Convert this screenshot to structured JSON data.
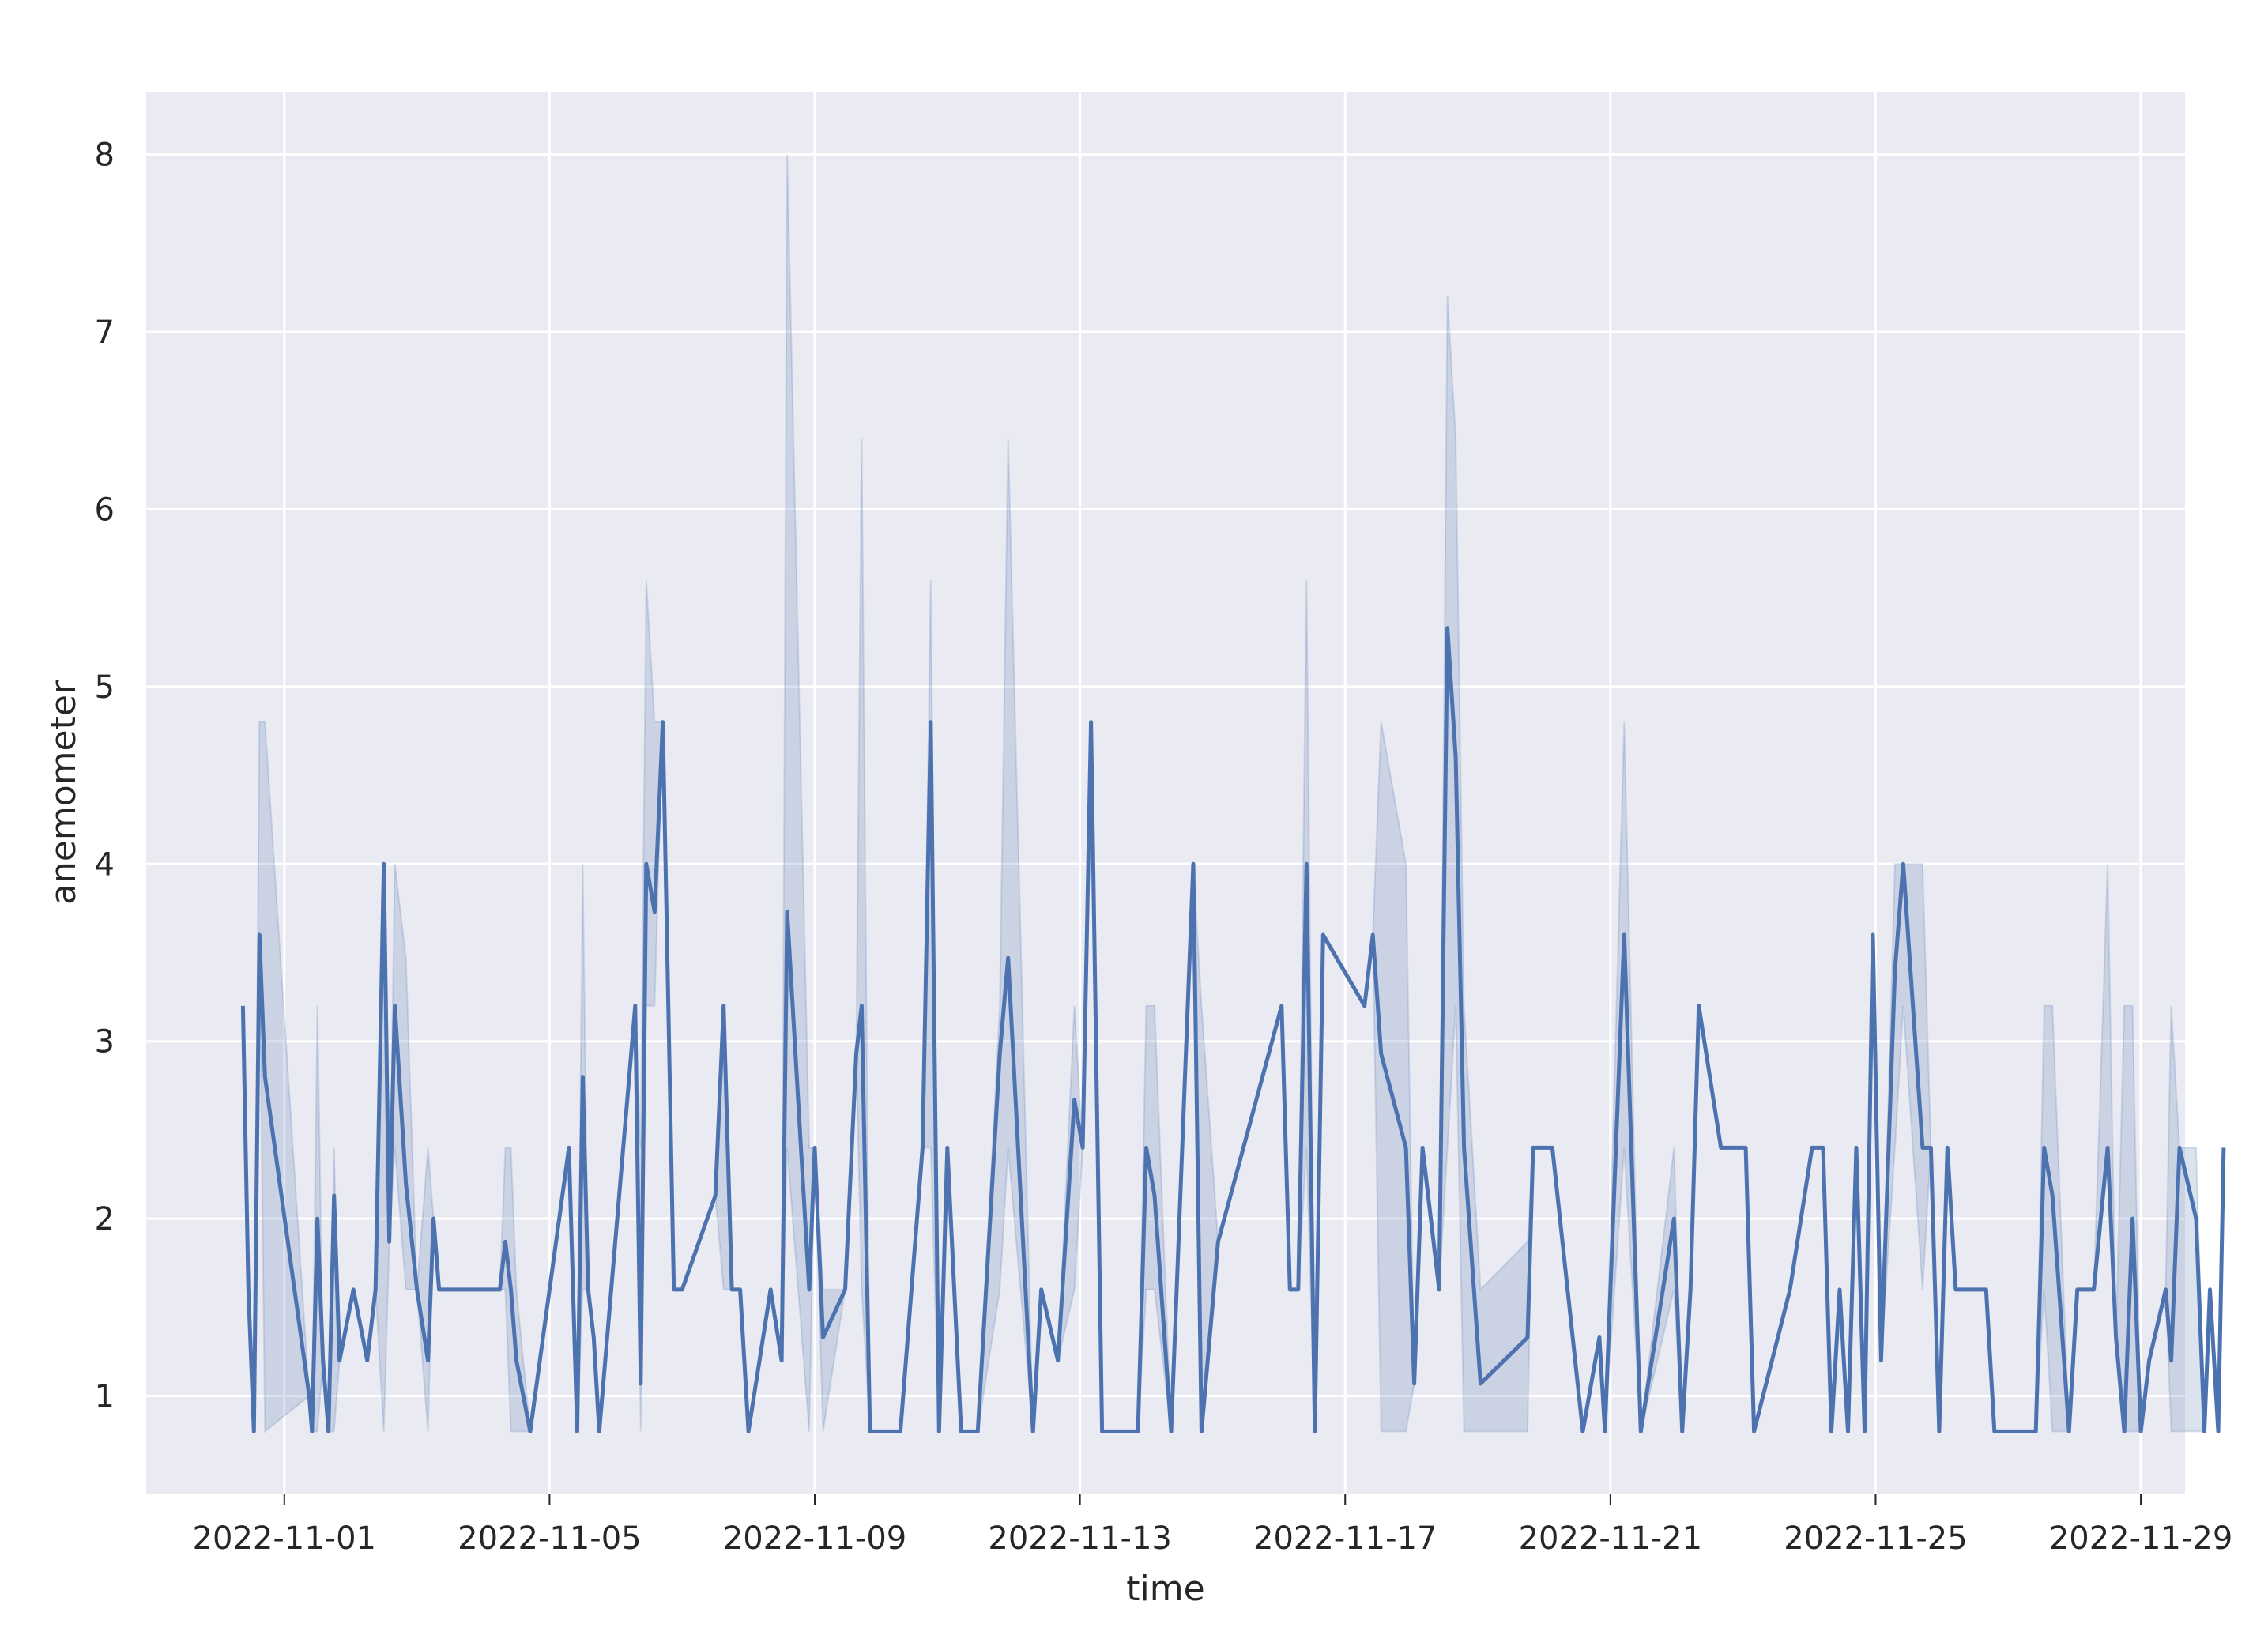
{
  "chart_data": {
    "type": "line",
    "title": "",
    "xlabel": "time",
    "ylabel": "anemometer",
    "x_ticks": [
      "2022-11-01",
      "2022-11-05",
      "2022-11-09",
      "2022-11-13",
      "2022-11-17",
      "2022-11-21",
      "2022-11-25",
      "2022-11-29"
    ],
    "y_ticks": [
      "1",
      "2",
      "3",
      "4",
      "5",
      "6",
      "7",
      "8"
    ],
    "xlim": [
      "2022-10-29T22:00",
      "2022-11-29T16:00"
    ],
    "ylim": [
      0.45,
      8.35
    ],
    "grid": true,
    "legend": "none",
    "colors": {
      "plot_bg": "#eaeaf2",
      "grid": "#ffffff",
      "line": "#4c72b0",
      "band": "#4c72b0"
    },
    "series": [
      {
        "points": [
          [
            "2022-10-31T09:00",
            3.2
          ],
          [
            "2022-10-31T11:00",
            1.6
          ],
          [
            "2022-10-31T13:00",
            0.8
          ],
          [
            "2022-10-31T15:00",
            3.6
          ],
          [
            "2022-10-31T17:00",
            2.8
          ],
          [
            "2022-11-01T09:00",
            1.0
          ],
          [
            "2022-11-01T10:00",
            0.8
          ],
          [
            "2022-11-01T12:00",
            2.0
          ],
          [
            "2022-11-01T14:00",
            1.2
          ],
          [
            "2022-11-01T16:00",
            0.8
          ],
          [
            "2022-11-01T18:00",
            2.13
          ],
          [
            "2022-11-01T20:00",
            1.2
          ],
          [
            "2022-11-02T01:00",
            1.6
          ],
          [
            "2022-11-02T06:00",
            1.2
          ],
          [
            "2022-11-02T09:00",
            1.6
          ],
          [
            "2022-11-02T12:00",
            4.0
          ],
          [
            "2022-11-02T14:00",
            1.87
          ],
          [
            "2022-11-02T16:00",
            3.2
          ],
          [
            "2022-11-02T20:00",
            2.2
          ],
          [
            "2022-11-03T00:00",
            1.6
          ],
          [
            "2022-11-03T04:00",
            1.2
          ],
          [
            "2022-11-03T06:00",
            2.0
          ],
          [
            "2022-11-03T08:00",
            1.6
          ],
          [
            "2022-11-04T06:00",
            1.6
          ],
          [
            "2022-11-04T08:00",
            1.87
          ],
          [
            "2022-11-04T10:00",
            1.6
          ],
          [
            "2022-11-04T12:00",
            1.2
          ],
          [
            "2022-11-04T17:00",
            0.8
          ],
          [
            "2022-11-05T07:00",
            2.4
          ],
          [
            "2022-11-05T10:00",
            0.8
          ],
          [
            "2022-11-05T12:00",
            2.8
          ],
          [
            "2022-11-05T14:00",
            1.6
          ],
          [
            "2022-11-05T16:00",
            1.33
          ],
          [
            "2022-11-05T18:00",
            0.8
          ],
          [
            "2022-11-06T07:00",
            3.2
          ],
          [
            "2022-11-06T09:00",
            1.07
          ],
          [
            "2022-11-06T11:00",
            4.0
          ],
          [
            "2022-11-06T14:00",
            3.73
          ],
          [
            "2022-11-06T17:00",
            4.8
          ],
          [
            "2022-11-06T21:00",
            1.6
          ],
          [
            "2022-11-07T00:00",
            1.6
          ],
          [
            "2022-11-07T12:00",
            2.13
          ],
          [
            "2022-11-07T15:00",
            3.2
          ],
          [
            "2022-11-07T18:00",
            1.6
          ],
          [
            "2022-11-07T21:00",
            1.6
          ],
          [
            "2022-11-08T00:00",
            0.8
          ],
          [
            "2022-11-08T08:00",
            1.6
          ],
          [
            "2022-11-08T12:00",
            1.2
          ],
          [
            "2022-11-08T14:00",
            3.73
          ],
          [
            "2022-11-08T22:00",
            1.6
          ],
          [
            "2022-11-09T00:00",
            2.4
          ],
          [
            "2022-11-09T03:00",
            1.33
          ],
          [
            "2022-11-09T11:00",
            1.6
          ],
          [
            "2022-11-09T15:00",
            2.93
          ],
          [
            "2022-11-09T17:00",
            3.2
          ],
          [
            "2022-11-09T20:00",
            0.8
          ],
          [
            "2022-11-10T07:00",
            0.8
          ],
          [
            "2022-11-10T15:00",
            2.4
          ],
          [
            "2022-11-10T18:00",
            4.8
          ],
          [
            "2022-11-10T21:00",
            0.8
          ],
          [
            "2022-11-11T00:00",
            2.4
          ],
          [
            "2022-11-11T05:00",
            0.8
          ],
          [
            "2022-11-11T11:00",
            0.8
          ],
          [
            "2022-11-11T19:00",
            2.93
          ],
          [
            "2022-11-11T22:00",
            3.47
          ],
          [
            "2022-11-12T07:00",
            0.8
          ],
          [
            "2022-11-12T10:00",
            1.6
          ],
          [
            "2022-11-12T16:00",
            1.2
          ],
          [
            "2022-11-12T22:00",
            2.67
          ],
          [
            "2022-11-13T01:00",
            2.4
          ],
          [
            "2022-11-13T04:00",
            4.8
          ],
          [
            "2022-11-13T08:00",
            0.8
          ],
          [
            "2022-11-13T21:00",
            0.8
          ],
          [
            "2022-11-14T00:00",
            2.4
          ],
          [
            "2022-11-14T03:00",
            2.13
          ],
          [
            "2022-11-14T09:00",
            0.8
          ],
          [
            "2022-11-14T17:00",
            4.0
          ],
          [
            "2022-11-14T20:00",
            0.8
          ],
          [
            "2022-11-15T02:00",
            1.87
          ],
          [
            "2022-11-16T01:00",
            3.2
          ],
          [
            "2022-11-16T04:00",
            1.6
          ],
          [
            "2022-11-16T07:00",
            1.6
          ],
          [
            "2022-11-16T10:00",
            4.0
          ],
          [
            "2022-11-16T13:00",
            0.8
          ],
          [
            "2022-11-16T16:00",
            3.6
          ],
          [
            "2022-11-17T07:00",
            3.2
          ],
          [
            "2022-11-17T10:00",
            3.6
          ],
          [
            "2022-11-17T13:00",
            2.93
          ],
          [
            "2022-11-17T22:00",
            2.4
          ],
          [
            "2022-11-18T01:00",
            1.07
          ],
          [
            "2022-11-18T04:00",
            2.4
          ],
          [
            "2022-11-18T10:00",
            1.6
          ],
          [
            "2022-11-18T13:00",
            5.33
          ],
          [
            "2022-11-18T16:00",
            4.6
          ],
          [
            "2022-11-18T19:00",
            2.4
          ],
          [
            "2022-11-19T01:00",
            1.07
          ],
          [
            "2022-11-19T18:00",
            1.33
          ],
          [
            "2022-11-19T20:00",
            2.4
          ],
          [
            "2022-11-20T03:00",
            2.4
          ],
          [
            "2022-11-20T14:00",
            0.8
          ],
          [
            "2022-11-20T20:00",
            1.33
          ],
          [
            "2022-11-20T22:00",
            0.8
          ],
          [
            "2022-11-21T05:00",
            3.6
          ],
          [
            "2022-11-21T11:00",
            0.8
          ],
          [
            "2022-11-21T23:00",
            2.0
          ],
          [
            "2022-11-22T02:00",
            0.8
          ],
          [
            "2022-11-22T05:00",
            1.6
          ],
          [
            "2022-11-22T08:00",
            3.2
          ],
          [
            "2022-11-22T16:00",
            2.4
          ],
          [
            "2022-11-23T01:00",
            2.4
          ],
          [
            "2022-11-23T04:00",
            0.8
          ],
          [
            "2022-11-23T17:00",
            1.6
          ],
          [
            "2022-11-24T01:00",
            2.4
          ],
          [
            "2022-11-24T05:00",
            2.4
          ],
          [
            "2022-11-24T08:00",
            0.8
          ],
          [
            "2022-11-24T11:00",
            1.6
          ],
          [
            "2022-11-24T14:00",
            0.8
          ],
          [
            "2022-11-24T17:00",
            2.4
          ],
          [
            "2022-11-24T20:00",
            0.8
          ],
          [
            "2022-11-24T23:00",
            3.6
          ],
          [
            "2022-11-25T02:00",
            1.2
          ],
          [
            "2022-11-25T07:00",
            3.4
          ],
          [
            "2022-11-25T10:00",
            4.0
          ],
          [
            "2022-11-25T17:00",
            2.4
          ],
          [
            "2022-11-25T20:00",
            2.4
          ],
          [
            "2022-11-25T23:00",
            0.8
          ],
          [
            "2022-11-26T02:00",
            2.4
          ],
          [
            "2022-11-26T05:00",
            1.6
          ],
          [
            "2022-11-26T16:00",
            1.6
          ],
          [
            "2022-11-26T19:00",
            0.8
          ],
          [
            "2022-11-27T10:00",
            0.8
          ],
          [
            "2022-11-27T13:00",
            2.4
          ],
          [
            "2022-11-27T16:00",
            2.13
          ],
          [
            "2022-11-27T22:00",
            0.8
          ],
          [
            "2022-11-28T01:00",
            1.6
          ],
          [
            "2022-11-28T07:00",
            1.6
          ],
          [
            "2022-11-28T12:00",
            2.4
          ],
          [
            "2022-11-28T15:00",
            1.33
          ],
          [
            "2022-11-28T18:00",
            0.8
          ],
          [
            "2022-11-28T21:00",
            2.0
          ],
          [
            "2022-11-29T00:00",
            0.8
          ],
          [
            "2022-11-29T03:00",
            1.2
          ],
          [
            "2022-11-29T09:00",
            1.6
          ],
          [
            "2022-11-29T11:00",
            1.2
          ],
          [
            "2022-11-29T14:00",
            2.4
          ],
          [
            "2022-11-29T20:00",
            2.0
          ],
          [
            "2022-11-29T23:00",
            0.8
          ],
          [
            "2022-11-30T01:00",
            1.6
          ],
          [
            "2022-11-30T04:00",
            0.8
          ],
          [
            "2022-11-30T06:00",
            2.4
          ]
        ]
      }
    ],
    "ci_band": [
      [
        "2022-10-31T15:00",
        3.6,
        4.8
      ],
      [
        "2022-10-31T17:00",
        0.8,
        4.8
      ],
      [
        "2022-11-01T12:00",
        0.8,
        3.2
      ],
      [
        "2022-11-01T18:00",
        0.8,
        2.4
      ],
      [
        "2022-11-02T12:00",
        0.8,
        4.0
      ],
      [
        "2022-11-02T16:00",
        2.4,
        4.0
      ],
      [
        "2022-11-02T20:00",
        1.6,
        3.47
      ],
      [
        "2022-11-03T04:00",
        0.8,
        2.4
      ],
      [
        "2022-11-04T08:00",
        1.6,
        2.4
      ],
      [
        "2022-11-04T10:00",
        0.8,
        2.4
      ],
      [
        "2022-11-04T12:00",
        0.8,
        1.6
      ],
      [
        "2022-11-05T12:00",
        1.6,
        4.0
      ],
      [
        "2022-11-06T09:00",
        0.8,
        2.4
      ],
      [
        "2022-11-06T11:00",
        3.2,
        5.6
      ],
      [
        "2022-11-06T14:00",
        3.2,
        4.8
      ],
      [
        "2022-11-07T15:00",
        1.6,
        3.2
      ],
      [
        "2022-11-08T14:00",
        2.4,
        8.0
      ],
      [
        "2022-11-08T22:00",
        0.8,
        2.4
      ],
      [
        "2022-11-09T03:00",
        0.8,
        1.6
      ],
      [
        "2022-11-09T11:00",
        1.6,
        1.6
      ],
      [
        "2022-11-09T17:00",
        1.6,
        6.4
      ],
      [
        "2022-11-10T18:00",
        2.4,
        5.6
      ],
      [
        "2022-11-11T19:00",
        1.6,
        3.2
      ],
      [
        "2022-11-11T22:00",
        2.4,
        6.4
      ],
      [
        "2022-11-12T22:00",
        1.6,
        3.2
      ],
      [
        "2022-11-14T00:00",
        1.6,
        3.2
      ],
      [
        "2022-11-14T03:00",
        1.6,
        3.2
      ],
      [
        "2022-11-14T20:00",
        0.8,
        3.2
      ],
      [
        "2022-11-16T10:00",
        2.4,
        5.6
      ],
      [
        "2022-11-17T13:00",
        0.8,
        4.8
      ],
      [
        "2022-11-17T22:00",
        0.8,
        4.0
      ],
      [
        "2022-11-18T13:00",
        2.4,
        7.2
      ],
      [
        "2022-11-18T16:00",
        3.2,
        6.4
      ],
      [
        "2022-11-18T19:00",
        0.8,
        3.2
      ],
      [
        "2022-11-19T01:00",
        0.8,
        1.6
      ],
      [
        "2022-11-19T18:00",
        0.8,
        1.87
      ],
      [
        "2022-11-21T05:00",
        2.4,
        4.8
      ],
      [
        "2022-11-21T23:00",
        1.6,
        2.4
      ],
      [
        "2022-11-25T07:00",
        2.4,
        4.0
      ],
      [
        "2022-11-25T10:00",
        3.2,
        4.0
      ],
      [
        "2022-11-25T17:00",
        1.6,
        4.0
      ],
      [
        "2022-11-27T13:00",
        1.6,
        3.2
      ],
      [
        "2022-11-27T16:00",
        0.8,
        3.2
      ],
      [
        "2022-11-28T12:00",
        2.4,
        4.0
      ],
      [
        "2022-11-28T18:00",
        0.8,
        3.2
      ],
      [
        "2022-11-28T21:00",
        0.8,
        3.2
      ],
      [
        "2022-11-29T11:00",
        0.8,
        3.2
      ],
      [
        "2022-11-29T14:00",
        0.8,
        2.4
      ],
      [
        "2022-11-29T20:00",
        0.8,
        2.4
      ]
    ]
  }
}
